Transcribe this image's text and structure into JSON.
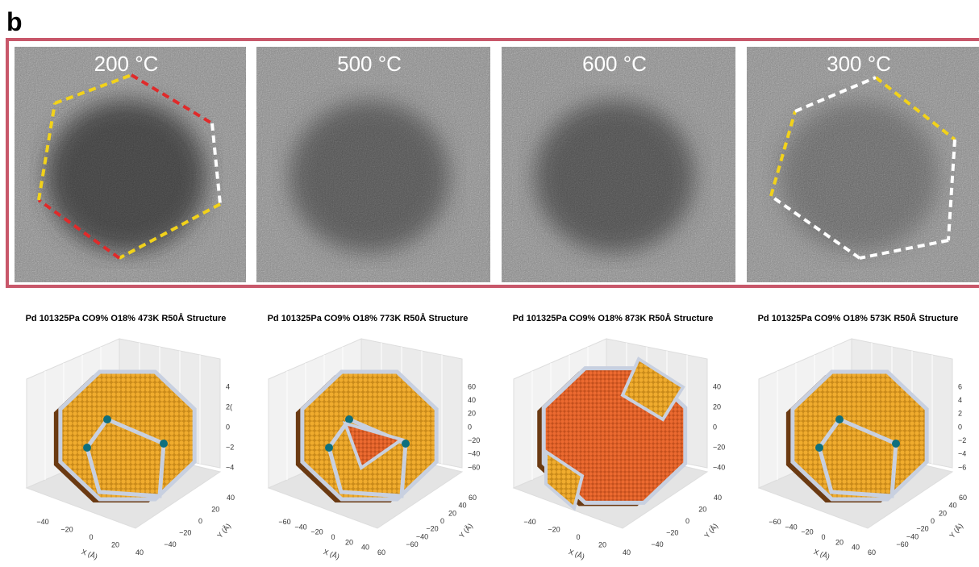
{
  "panel_label": "b",
  "tem_images": [
    {
      "label": "200 °C"
    },
    {
      "label": "500 °C"
    },
    {
      "label": "600 °C"
    },
    {
      "label": "300 °C"
    }
  ],
  "structures": [
    {
      "title": "Pd 101325Pa CO9% O18% 473K R50Å Structure",
      "z_ticks": [
        "4",
        "2(",
        "0",
        "−2",
        "−4"
      ],
      "x_ticks": [
        "−40",
        "−20",
        "0",
        "20",
        "40"
      ],
      "y_ticks": [
        "40",
        "20",
        "0",
        "−20",
        "−40"
      ],
      "x_label": "X (Å)",
      "y_label": "Y (Å)"
    },
    {
      "title": "Pd 101325Pa CO9% O18% 773K R50Å Structure",
      "z_ticks": [
        "60",
        "40",
        "20",
        "0",
        "−20",
        "−40",
        "−60"
      ],
      "x_ticks": [
        "−60",
        "−40",
        "−20",
        "0",
        "20",
        "40",
        "60"
      ],
      "y_ticks": [
        "60",
        "40",
        "20",
        "0",
        "−20",
        "−40",
        "−60"
      ],
      "x_label": "X (Å)",
      "y_label": "Y (Å)"
    },
    {
      "title": "Pd 101325Pa CO9% O18% 873K R50Å Structure",
      "z_ticks": [
        "40",
        "20",
        "0",
        "−20",
        "−40"
      ],
      "x_ticks": [
        "−40",
        "−20",
        "0",
        "20",
        "40"
      ],
      "y_ticks": [
        "40",
        "20",
        "0",
        "−20",
        "−40"
      ],
      "x_label": "X (Å)",
      "y_label": "Y (Å)"
    },
    {
      "title": "Pd 101325Pa CO9% O18% 573K R50Å Structure",
      "z_ticks": [
        "6",
        "4",
        "2",
        "0",
        "−2",
        "−4",
        "−6"
      ],
      "x_ticks": [
        "−60",
        "−40",
        "−20",
        "0",
        "20",
        "40",
        "60"
      ],
      "y_ticks": [
        "60",
        "40",
        "20",
        "0",
        "−20",
        "−40",
        "−60"
      ],
      "x_label": "X (Å)",
      "y_label": "Y (Å)"
    }
  ]
}
